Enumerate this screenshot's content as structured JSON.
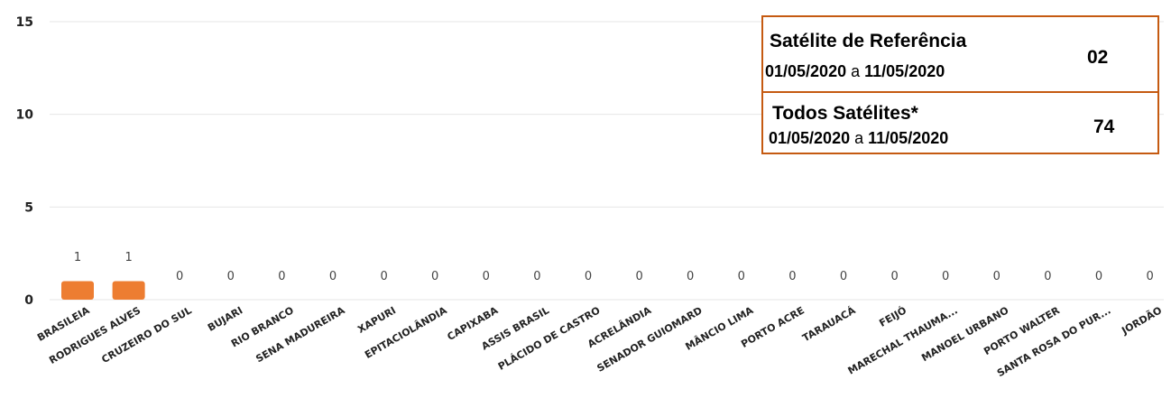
{
  "chart_data": {
    "type": "bar",
    "categories": [
      "BRASILEIA",
      "RODRIGUES ALVES",
      "CRUZEIRO DO SUL",
      "BUJARI",
      "RIO BRANCO",
      "SENA MADUREIRA",
      "XAPURI",
      "EPITACIOLÂNDIA",
      "CAPIXABA",
      "ASSIS BRASIL",
      "PLÁCIDO DE CASTRO",
      "ACRELÂNDIA",
      "SENADOR GUIOMARD",
      "MÂNCIO LIMA",
      "PORTO ACRE",
      "TARAUACÁ",
      "FEIJÓ",
      "MARECHAL THAUMA...",
      "MANOEL URBANO",
      "PORTO WALTER",
      "SANTA ROSA DO PUR...",
      "JORDÃO"
    ],
    "values": [
      1,
      1,
      0,
      0,
      0,
      0,
      0,
      0,
      0,
      0,
      0,
      0,
      0,
      0,
      0,
      0,
      0,
      0,
      0,
      0,
      0,
      0
    ],
    "data_labels": [
      "1",
      "1",
      "0",
      "0",
      "0",
      "0",
      "0",
      "0",
      "0",
      "0",
      "0",
      "0",
      "0",
      "0",
      "0",
      "0",
      "0",
      "0",
      "0",
      "0",
      "0",
      "0"
    ],
    "y_ticks": [
      "0",
      "5",
      "10",
      "15"
    ],
    "ylim": [
      0,
      15
    ],
    "grid": true,
    "bar_color": "#ed7d31"
  },
  "info_box": {
    "row1": {
      "title": "Satélite de Referência",
      "date_from": "01/05/2020",
      "date_sep": "a",
      "date_to": "11/05/2020",
      "count": "02"
    },
    "row2": {
      "title": "Todos Satélites*",
      "date_from": "01/05/2020",
      "date_sep": "a",
      "date_to": "11/05/2020",
      "count": "74"
    },
    "border_color": "#c55a11"
  }
}
